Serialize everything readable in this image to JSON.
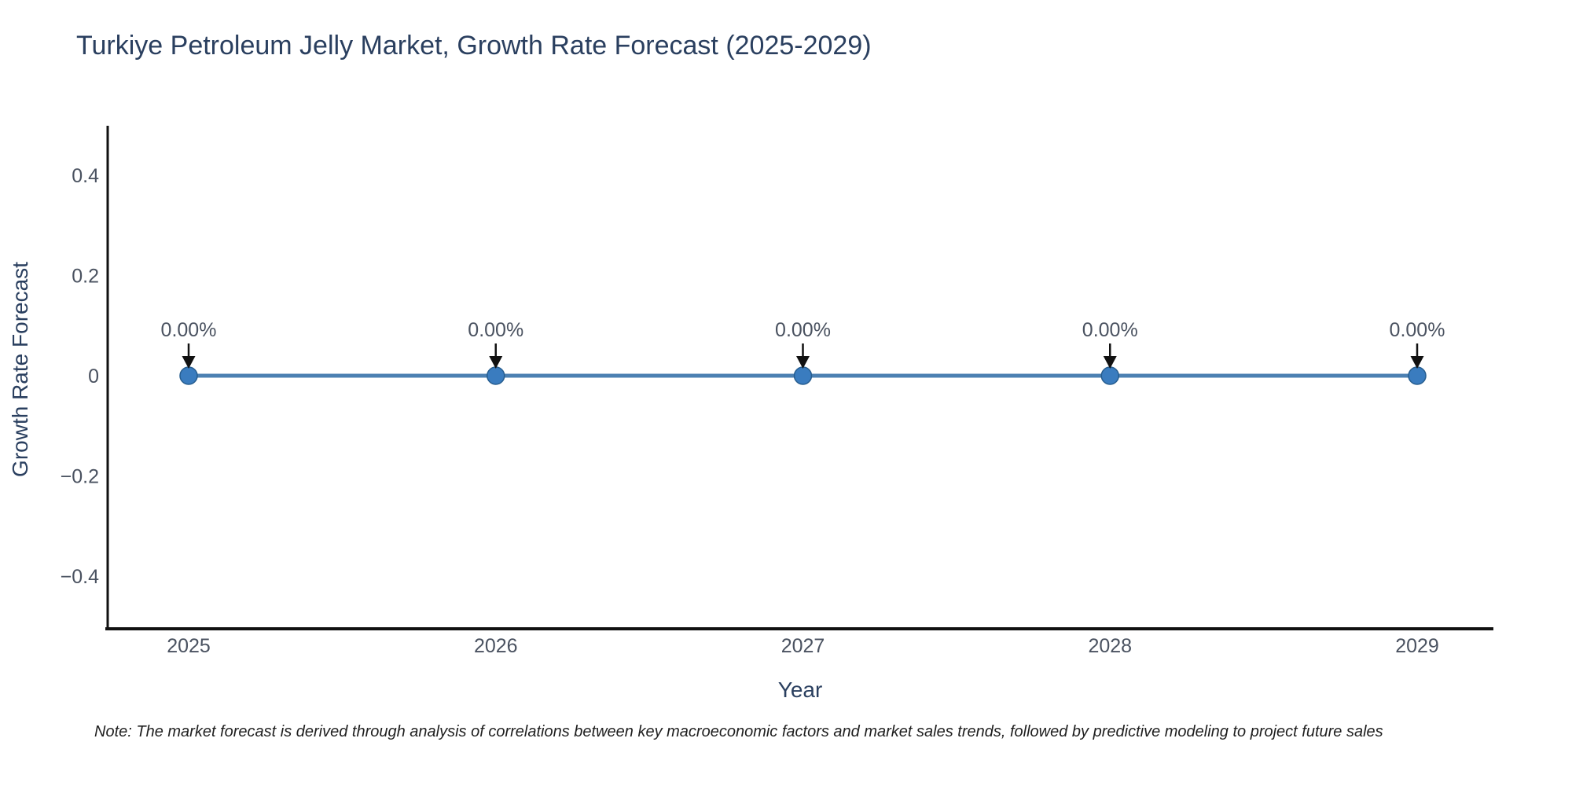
{
  "chart_data": {
    "type": "line",
    "title": "Turkiye Petroleum Jelly Market, Growth Rate Forecast (2025-2029)",
    "x": [
      2025,
      2026,
      2027,
      2028,
      2029
    ],
    "xtick_labels": [
      "2025",
      "2026",
      "2027",
      "2028",
      "2029"
    ],
    "series": [
      {
        "name": "Growth Rate Forecast",
        "values": [
          0,
          0,
          0,
          0,
          0
        ]
      }
    ],
    "point_labels": [
      "0.00%",
      "0.00%",
      "0.00%",
      "0.00%",
      "0.00%"
    ],
    "xlabel": "Year",
    "ylabel": "Growth Rate Forecast",
    "yticks": [
      0.4,
      0.2,
      0,
      -0.2,
      -0.4
    ],
    "ytick_labels": [
      "0.4",
      "0.2",
      "0",
      "−0.2",
      "−0.4"
    ],
    "ylim": [
      -0.5,
      0.5
    ],
    "grid": false,
    "legend_position": "none",
    "colors": {
      "line": "#4c80b2",
      "marker_fill": "#3a7cbf",
      "marker_edge": "#265d8f",
      "axis_line": "#111111",
      "title_text": "#2a3f5f",
      "axis_title_text": "#2a3f5f",
      "tick_text": "#4a5260",
      "annotation_text": "#4a5260",
      "arrow": "#111111",
      "background": "#ffffff"
    }
  },
  "note": {
    "text": "Note: The market forecast is derived through analysis of correlations between key macroeconomic factors and market sales trends, followed by predictive modeling to project future sales"
  }
}
